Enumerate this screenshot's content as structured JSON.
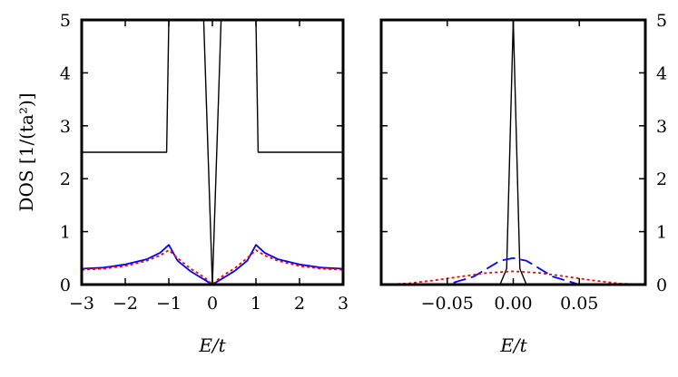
{
  "chart_data": [
    {
      "type": "line",
      "xlabel": "E/t",
      "ylabel": "DOS [1/(ta²)]",
      "xlim": [
        -3,
        3
      ],
      "ylim": [
        0,
        5
      ],
      "xticks": [
        -3,
        -2,
        -1,
        0,
        1,
        2,
        3
      ],
      "xtick_labels": [
        "−3",
        "−2",
        "−1",
        "0",
        "1",
        "2",
        "3"
      ],
      "yticks": [
        0,
        1,
        2,
        3,
        4,
        5
      ],
      "ytick_labels": [
        "0",
        "1",
        "2",
        "3",
        "4",
        "5"
      ],
      "grid": false,
      "series": [
        {
          "color": "#000000",
          "style": "solid",
          "x": [
            -3,
            -2.5,
            -2,
            -1.5,
            -1.05,
            -1,
            -0.5,
            -0.2,
            0,
            0.2,
            0.5,
            1,
            1.05,
            1.5,
            2,
            2.5,
            3
          ],
          "values": [
            2.5,
            2.5,
            2.5,
            2.5,
            2.5,
            5,
            5,
            5,
            0,
            5,
            5,
            5,
            2.5,
            2.5,
            2.5,
            2.5,
            2.5
          ]
        },
        {
          "color": "#0000ff",
          "style": "solid",
          "x": [
            -3,
            -2.5,
            -2,
            -1.5,
            -1.2,
            -1.0,
            -0.8,
            -0.5,
            -0.3,
            -0.1,
            0,
            0.1,
            0.3,
            0.5,
            0.8,
            1.0,
            1.2,
            1.5,
            2,
            2.5,
            3
          ],
          "values": [
            0.3,
            0.32,
            0.38,
            0.48,
            0.6,
            0.75,
            0.45,
            0.25,
            0.15,
            0.05,
            0.0,
            0.05,
            0.15,
            0.25,
            0.45,
            0.75,
            0.6,
            0.48,
            0.38,
            0.32,
            0.3
          ]
        },
        {
          "color": "#ff0000",
          "style": "dotted",
          "x": [
            -3,
            -2.5,
            -2,
            -1.5,
            -1.2,
            -1.0,
            -0.8,
            -0.5,
            -0.3,
            -0.1,
            0,
            0.1,
            0.3,
            0.5,
            0.8,
            1.0,
            1.2,
            1.5,
            2,
            2.5,
            3
          ],
          "values": [
            0.28,
            0.3,
            0.35,
            0.45,
            0.55,
            0.65,
            0.5,
            0.3,
            0.2,
            0.08,
            0.0,
            0.08,
            0.2,
            0.3,
            0.5,
            0.65,
            0.55,
            0.45,
            0.35,
            0.3,
            0.28
          ]
        }
      ]
    },
    {
      "type": "line",
      "xlabel": "E/t",
      "xlim": [
        -0.1,
        0.1
      ],
      "ylim": [
        0,
        5
      ],
      "xticks": [
        -0.05,
        0.0,
        0.05
      ],
      "xtick_labels": [
        "−0.05",
        "0.00",
        "0.05"
      ],
      "yticks": [
        0,
        1,
        2,
        3,
        4,
        5
      ],
      "ytick_labels": [
        "0",
        "1",
        "2",
        "3",
        "4",
        "5"
      ],
      "yaxis_side": "right",
      "grid": false,
      "series": [
        {
          "color": "#000000",
          "style": "solid",
          "x": [
            -0.1,
            -0.01,
            -0.005,
            0.0,
            0.005,
            0.01,
            0.1
          ],
          "values": [
            0.0,
            0.0,
            0.3,
            5.0,
            0.3,
            0.0,
            0.0
          ]
        },
        {
          "color": "#0000ff",
          "style": "dashed",
          "x": [
            -0.1,
            -0.05,
            -0.03,
            -0.02,
            -0.01,
            0.0,
            0.01,
            0.02,
            0.03,
            0.05,
            0.1
          ],
          "values": [
            0.0,
            0.0,
            0.15,
            0.3,
            0.45,
            0.5,
            0.45,
            0.3,
            0.15,
            0.0,
            0.0
          ]
        },
        {
          "color": "#ff0000",
          "style": "dotted",
          "x": [
            -0.1,
            -0.08,
            -0.06,
            -0.04,
            -0.02,
            0.0,
            0.02,
            0.04,
            0.06,
            0.08,
            0.1
          ],
          "values": [
            0.0,
            0.02,
            0.08,
            0.15,
            0.22,
            0.25,
            0.22,
            0.15,
            0.08,
            0.02,
            0.0
          ]
        }
      ]
    }
  ]
}
